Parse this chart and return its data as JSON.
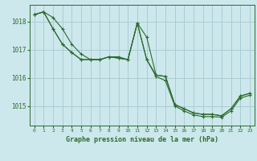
{
  "title": "Graphe pression niveau de la mer (hPa)",
  "background_color": "#cce8ec",
  "grid_color": "#aacdd4",
  "line_color": "#2d6a2d",
  "xlim": [
    -0.5,
    23.5
  ],
  "ylim": [
    1014.3,
    1018.6
  ],
  "yticks": [
    1015,
    1016,
    1017,
    1018
  ],
  "xticks": [
    0,
    1,
    2,
    3,
    4,
    5,
    6,
    7,
    8,
    9,
    10,
    11,
    12,
    13,
    14,
    15,
    16,
    17,
    18,
    19,
    20,
    21,
    22,
    23
  ],
  "series": [
    [
      1018.25,
      1018.35,
      1018.15,
      1017.75,
      1017.2,
      1016.85,
      1016.65,
      1016.65,
      1016.75,
      1016.75,
      1016.65,
      1017.95,
      1017.45,
      1016.1,
      1016.05,
      1015.05,
      1014.9,
      1014.75,
      1014.7,
      1014.7,
      1014.65,
      1014.9,
      1015.35,
      1015.45
    ],
    [
      1018.25,
      1018.35,
      1017.75,
      1017.2,
      1016.9,
      1016.65,
      1016.65,
      1016.65,
      1016.75,
      1016.7,
      1016.65,
      1017.95,
      1016.65,
      1016.1,
      1016.05,
      1015.05,
      1014.9,
      1014.75,
      1014.7,
      1014.7,
      1014.65,
      1014.9,
      1015.35,
      1015.45
    ],
    [
      1018.25,
      1018.35,
      1017.75,
      1017.2,
      1016.9,
      1016.65,
      1016.65,
      1016.65,
      1016.75,
      1016.7,
      1016.65,
      1017.95,
      1016.65,
      1016.05,
      1015.9,
      1015.0,
      1014.82,
      1014.68,
      1014.62,
      1014.62,
      1014.6,
      1014.82,
      1015.28,
      1015.38
    ]
  ]
}
